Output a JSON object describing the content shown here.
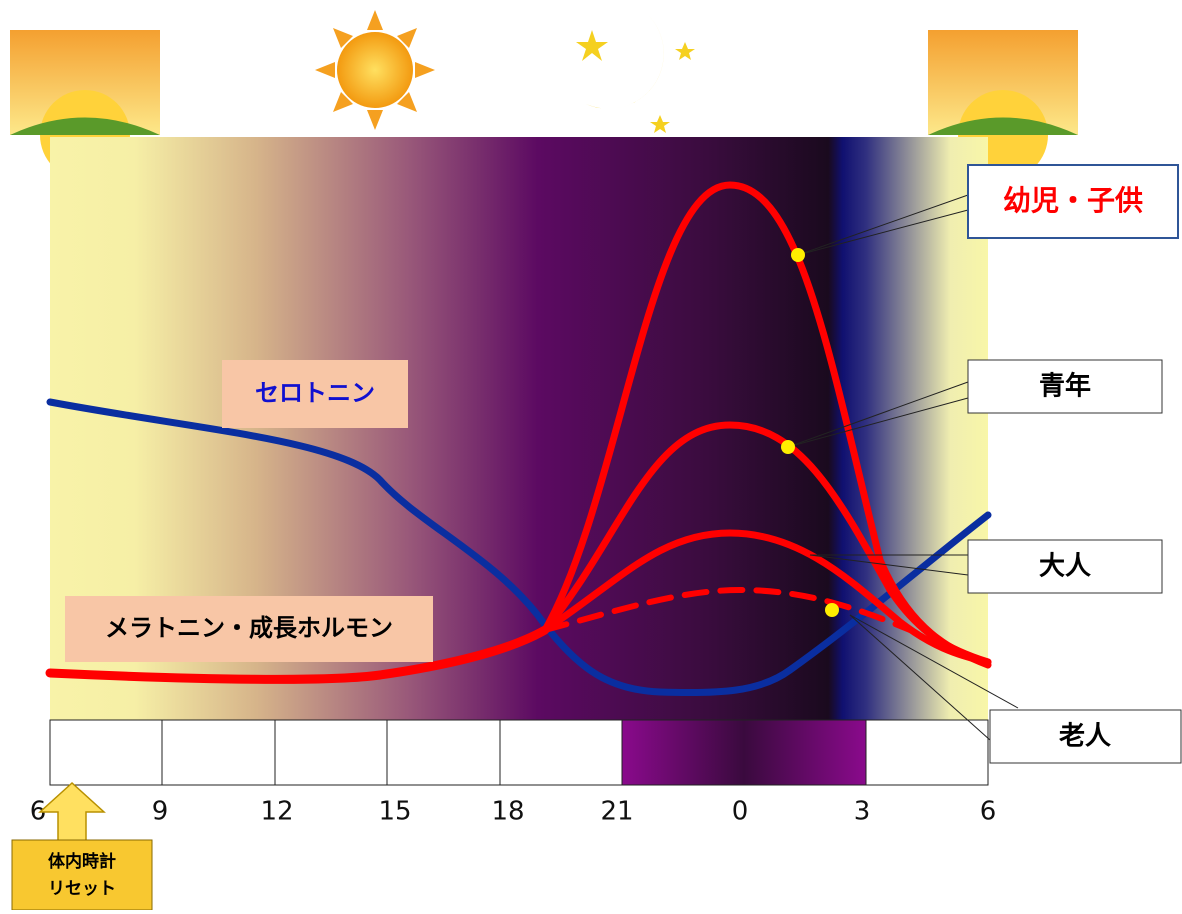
{
  "labels": {
    "serotonin": "セロトニン",
    "melatonin": "メラトニン・成長ホルモン"
  },
  "callouts": [
    "幼児・子供",
    "青年",
    "大人",
    "老人"
  ],
  "hours": [
    "6",
    "9",
    "12",
    "15",
    "18",
    "21",
    "0",
    "3",
    "6"
  ],
  "reset": [
    "体内時計",
    "リセット"
  ]
}
